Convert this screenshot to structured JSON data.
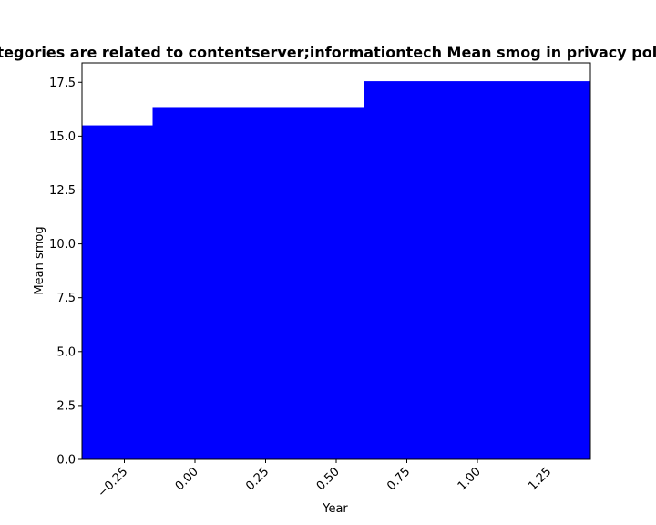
{
  "chart_data": {
    "type": "bar",
    "title": "Categories are related to contentserver;informationtech Mean smog in privacy policies",
    "xlabel": "Year",
    "ylabel": "Mean smog",
    "xlim": [
      -0.4,
      1.4
    ],
    "ylim": [
      0,
      18.4
    ],
    "grid": false,
    "bar_color": "#0000ff",
    "bars": [
      {
        "x_start": -0.4,
        "x_end": -0.15,
        "value": 15.5
      },
      {
        "x_start": -0.15,
        "x_end": 0.6,
        "value": 16.35
      },
      {
        "x_start": 0.6,
        "x_end": 1.4,
        "value": 17.55
      }
    ],
    "x_ticks": [
      -0.25,
      0,
      0.25,
      0.5,
      0.75,
      1,
      1.25
    ],
    "x_tick_labels": [
      "−0.25",
      "0.00",
      "0.25",
      "0.50",
      "0.75",
      "1.00",
      "1.25"
    ],
    "y_ticks": [
      0,
      2.5,
      5,
      7.5,
      10,
      12.5,
      15,
      17.5
    ],
    "y_tick_labels": [
      "0.0",
      "2.5",
      "5.0",
      "7.5",
      "10.0",
      "12.5",
      "15.0",
      "17.5"
    ]
  }
}
